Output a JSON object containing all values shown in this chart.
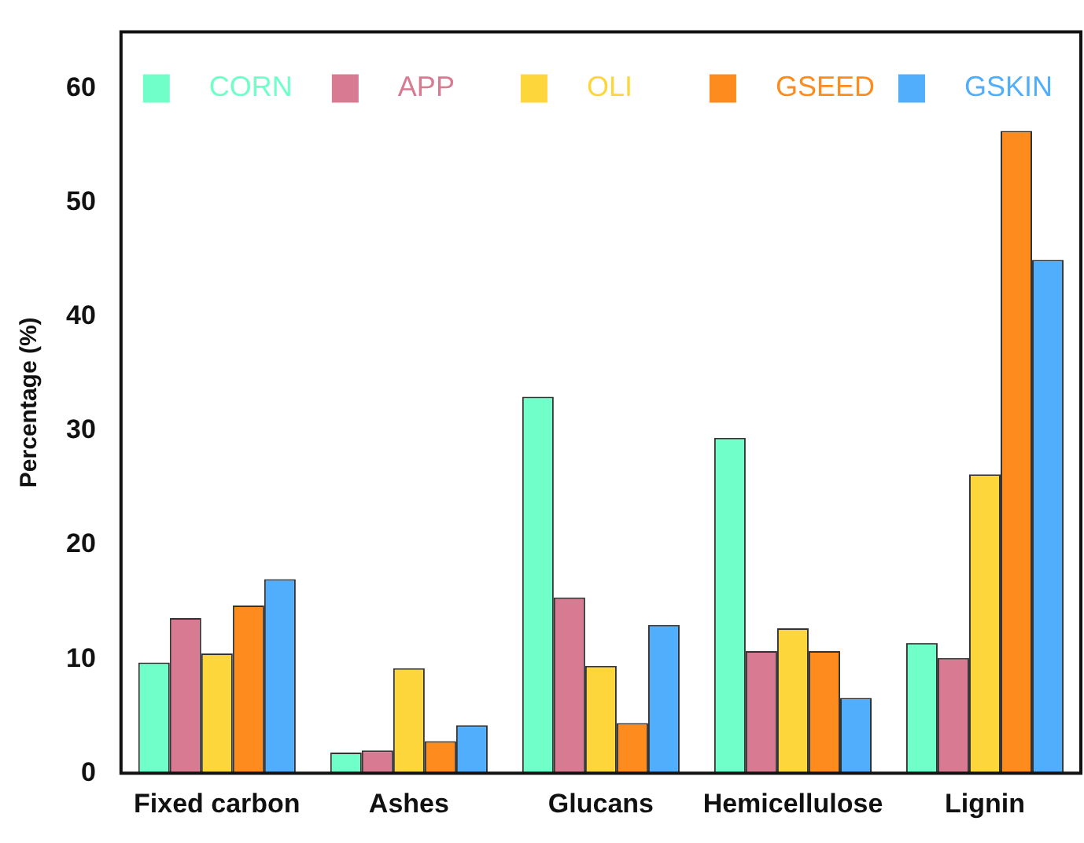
{
  "chart_data": {
    "type": "bar",
    "ylabel": "Percentage (%)",
    "categories": [
      "Fixed carbon",
      "Ashes",
      "Glucans",
      "Hemicellulose",
      "Lignin"
    ],
    "series": [
      {
        "name": "CORN",
        "color": "#70ffc8",
        "values": [
          9.7,
          1.8,
          33.0,
          29.4,
          11.4
        ]
      },
      {
        "name": "APP",
        "color": "#d77a92",
        "values": [
          13.6,
          2.0,
          15.4,
          10.7,
          10.1
        ]
      },
      {
        "name": "OLI",
        "color": "#fdd63c",
        "values": [
          10.5,
          9.2,
          9.4,
          12.7,
          26.2
        ]
      },
      {
        "name": "GSEED",
        "color": "#fd8b1d",
        "values": [
          14.7,
          2.8,
          4.4,
          10.7,
          56.3
        ]
      },
      {
        "name": "GSKIN",
        "color": "#50aefd",
        "values": [
          17.0,
          4.2,
          13.0,
          6.6,
          45.0
        ]
      }
    ],
    "ylim": [
      0,
      65
    ],
    "yticks": [
      0,
      10,
      20,
      30,
      40,
      50,
      60
    ],
    "grid": false,
    "legend": "top"
  }
}
